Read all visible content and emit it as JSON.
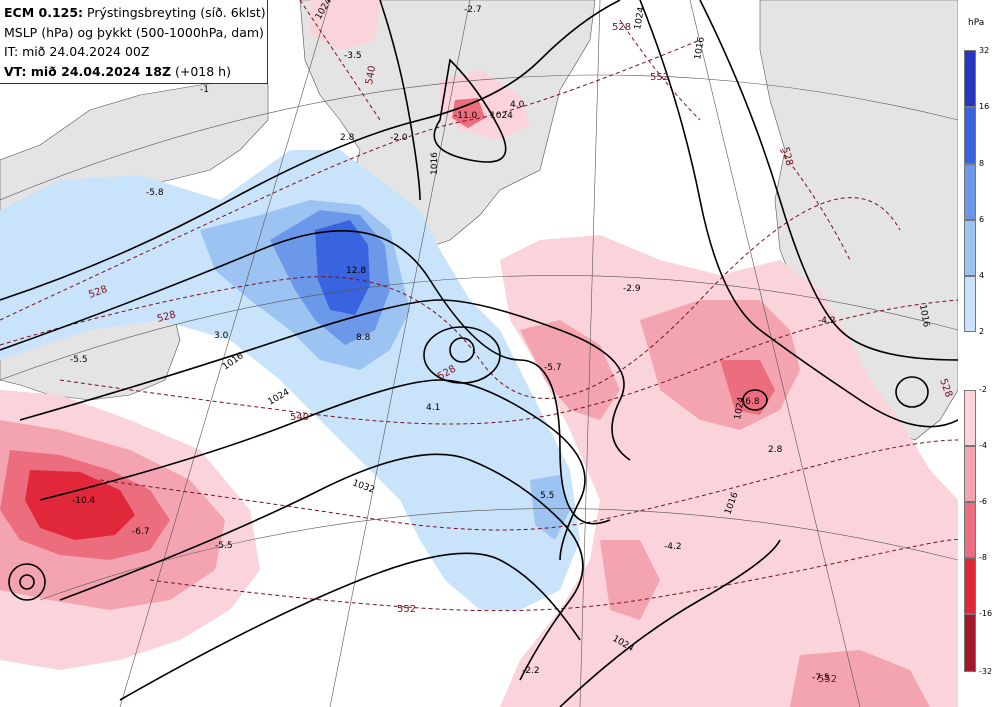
{
  "header": {
    "model": "ECM 0.125:",
    "title_rest": "Prýstingsbreyting (síð. 6klst)",
    "line2": "MSLP (hPa) og þykkt (500-1000hPa, dam)",
    "line3": "IT: mið 24.04.2024 00Z",
    "line4_bold": "VT: mið 24.04.2024 18Z",
    "line4_rest": "(+018 h)"
  },
  "legend": {
    "unit": "hPa",
    "positive": [
      {
        "tick": "32",
        "color": "#2636c0"
      },
      {
        "tick": "16",
        "color": "#3a63df"
      },
      {
        "tick": "8",
        "color": "#6c98ea"
      },
      {
        "tick": "6",
        "color": "#9cc3f2"
      },
      {
        "tick": "4",
        "color": "#c8e3fa"
      },
      {
        "tick": "2",
        "color": null
      }
    ],
    "negative": [
      {
        "tick": "-2",
        "color": "#fbd3da"
      },
      {
        "tick": "-4",
        "color": "#f4a4b0"
      },
      {
        "tick": "-6",
        "color": "#ec6d7d"
      },
      {
        "tick": "-8",
        "color": "#e0283a"
      },
      {
        "tick": "-16",
        "color": "#a2182a"
      },
      {
        "tick": "-32",
        "color": null
      }
    ]
  },
  "isobar_labels": [
    "1016",
    "1024",
    "1032",
    "1024",
    "1016",
    "1024",
    "1024",
    "1016",
    "1024",
    "1016",
    "1016",
    "1024"
  ],
  "thickness_labels": [
    "528",
    "528",
    "540",
    "528",
    "528",
    "540",
    "552",
    "552",
    "528",
    "552",
    "528"
  ],
  "value_labels": [
    "-3.5",
    "-5.8",
    "-5.5",
    "3.0",
    "2.8",
    "-2.0",
    "4.0",
    "12.8",
    "8.8",
    "4.1",
    "-5.7",
    "-2.9",
    "-4.2",
    "-6.8",
    "2.8",
    "5.5",
    "-4.2",
    "-5.5",
    "-10.4",
    "-6.7",
    "-2.2",
    "-7.5",
    "-11.0",
    "-2.7",
    "-1"
  ],
  "colors": {
    "land": "#e4e4e4",
    "isobar": "#000000",
    "thickness": "#7a1020"
  }
}
